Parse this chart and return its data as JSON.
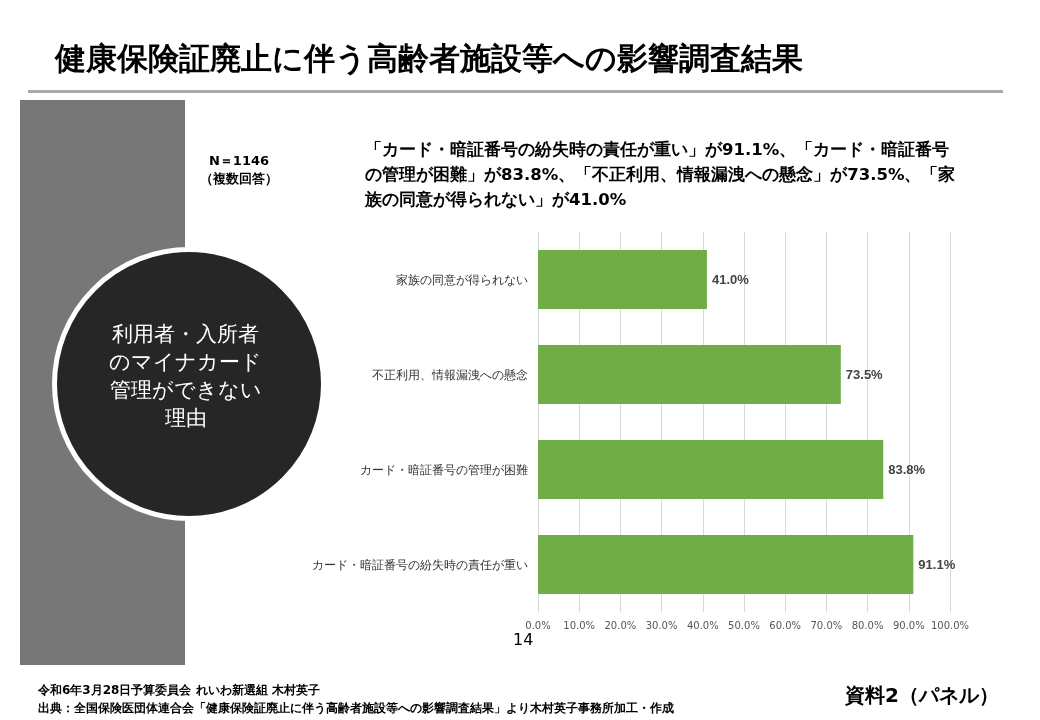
{
  "chart_data": {
    "type": "bar",
    "orientation": "horizontal",
    "title": "健康保険証廃止に伴う高齢者施設等への影響調査結果",
    "subtitle": "「カード・暗証番号の紛失時の責任が重い」が91.1%、「カード・暗証番号の管理が困難」が83.8%、「不正利用、情報漏洩への懸念」が73.5%、「家族の同意が得られない」が41.0%",
    "categories": [
      "家族の同意が得られない",
      "不正利用、情報漏洩への懸念",
      "カード・暗証番号の管理が困難",
      "カード・暗証番号の紛失時の責任が重い"
    ],
    "values": [
      41.0,
      73.5,
      83.8,
      91.1
    ],
    "value_labels": [
      "41.0%",
      "73.5%",
      "83.8%",
      "91.1%"
    ],
    "color": "#70ad47",
    "xlim": [
      0,
      100
    ],
    "xticks": [
      {
        "value": 0,
        "label": "0.0%"
      },
      {
        "value": 10,
        "label": "10.0%"
      },
      {
        "value": 20,
        "label": "20.0%"
      },
      {
        "value": 30,
        "label": "30.0%"
      },
      {
        "value": 40,
        "label": "40.0%"
      },
      {
        "value": 50,
        "label": "50.0%"
      },
      {
        "value": 60,
        "label": "60.0%"
      },
      {
        "value": 70,
        "label": "70.0%"
      },
      {
        "value": 80,
        "label": "80.0%"
      },
      {
        "value": 90,
        "label": "90.0%"
      },
      {
        "value": 100,
        "label": "100.0%"
      }
    ],
    "grid": "x",
    "annotations": [
      "N＝1146\n（複数回答）",
      "利用者・入所者のマイナカード管理ができない理由",
      "14",
      "令和6年3月28日予算委員会 れいわ新選組 木村英子",
      "出典：全国保険医団体連合会「健康保険証廃止に伴う高齢者施設等への影響調査結果」より木村英子事務所加工・作成",
      "資料2（パネル）"
    ]
  }
}
